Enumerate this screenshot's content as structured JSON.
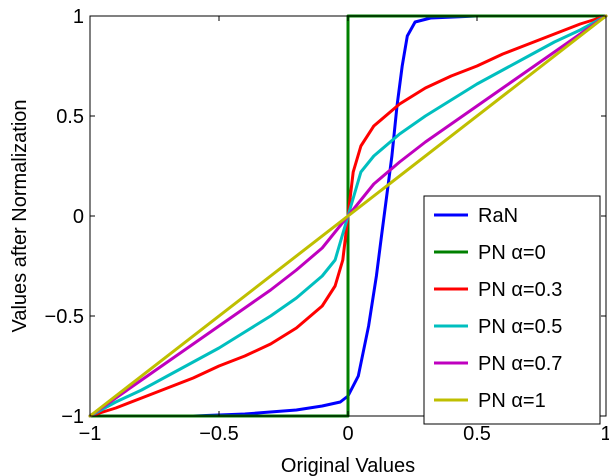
{
  "chart_data": {
    "type": "line",
    "title": "",
    "xlabel": "Original Values",
    "ylabel": "Values after Normalization",
    "xlim": [
      -1,
      1
    ],
    "ylim": [
      -1,
      1
    ],
    "grid": false,
    "legend_placement": "bottom-right",
    "x_ticks": [
      {
        "value": -1,
        "label": "−1"
      },
      {
        "value": -0.5,
        "label": "−0.5"
      },
      {
        "value": 0,
        "label": "0"
      },
      {
        "value": 0.5,
        "label": "0.5"
      },
      {
        "value": 1,
        "label": "1"
      }
    ],
    "y_ticks": [
      {
        "value": -1,
        "label": "−1"
      },
      {
        "value": -0.5,
        "label": "−0.5"
      },
      {
        "value": 0,
        "label": "0"
      },
      {
        "value": 0.5,
        "label": "0.5"
      },
      {
        "value": 1,
        "label": "1"
      }
    ],
    "series": [
      {
        "name": "RaN",
        "color": "#0000ff",
        "x": [
          -1,
          -0.6,
          -0.4,
          -0.2,
          -0.1,
          -0.03,
          0,
          0.04,
          0.08,
          0.11,
          0.13,
          0.15,
          0.17,
          0.19,
          0.21,
          0.23,
          0.26,
          0.32,
          0.5
        ],
        "y": [
          -1,
          -1,
          -0.99,
          -0.97,
          -0.95,
          -0.93,
          -0.9,
          -0.8,
          -0.55,
          -0.3,
          -0.1,
          0.1,
          0.3,
          0.55,
          0.75,
          0.9,
          0.97,
          0.99,
          1
        ]
      },
      {
        "name": "PN α=0",
        "color": "#008000",
        "x": [
          -1,
          0,
          0,
          1
        ],
        "y": [
          -1,
          -1,
          1,
          1
        ]
      },
      {
        "name": "PN α=0.3",
        "color": "#ff0000",
        "x": [
          -1,
          -0.9,
          -0.8,
          -0.7,
          -0.6,
          -0.5,
          -0.4,
          -0.3,
          -0.2,
          -0.1,
          -0.05,
          -0.02,
          0,
          0.02,
          0.05,
          0.1,
          0.2,
          0.3,
          0.4,
          0.5,
          0.6,
          0.7,
          0.8,
          0.9,
          1
        ],
        "y": [
          -1,
          -0.96,
          -0.91,
          -0.86,
          -0.81,
          -0.75,
          -0.7,
          -0.64,
          -0.56,
          -0.45,
          -0.35,
          -0.22,
          0,
          0.22,
          0.35,
          0.45,
          0.56,
          0.64,
          0.7,
          0.75,
          0.81,
          0.86,
          0.91,
          0.96,
          1
        ]
      },
      {
        "name": "PN α=0.5",
        "color": "#00bfbf",
        "x": [
          -1,
          -0.9,
          -0.8,
          -0.7,
          -0.6,
          -0.5,
          -0.4,
          -0.3,
          -0.2,
          -0.1,
          -0.05,
          0,
          0.05,
          0.1,
          0.2,
          0.3,
          0.4,
          0.5,
          0.6,
          0.7,
          0.8,
          0.9,
          1
        ],
        "y": [
          -1,
          -0.93,
          -0.87,
          -0.8,
          -0.73,
          -0.66,
          -0.58,
          -0.5,
          -0.41,
          -0.3,
          -0.22,
          0,
          0.22,
          0.3,
          0.41,
          0.5,
          0.58,
          0.66,
          0.73,
          0.8,
          0.87,
          0.93,
          1
        ]
      },
      {
        "name": "PN α=0.7",
        "color": "#bf00bf",
        "x": [
          -1,
          -0.9,
          -0.8,
          -0.7,
          -0.6,
          -0.5,
          -0.4,
          -0.3,
          -0.2,
          -0.1,
          0,
          0.1,
          0.2,
          0.3,
          0.4,
          0.5,
          0.6,
          0.7,
          0.8,
          0.9,
          1
        ],
        "y": [
          -1,
          -0.91,
          -0.82,
          -0.73,
          -0.64,
          -0.55,
          -0.46,
          -0.37,
          -0.27,
          -0.16,
          0,
          0.16,
          0.27,
          0.37,
          0.46,
          0.55,
          0.64,
          0.73,
          0.82,
          0.91,
          1
        ]
      },
      {
        "name": "PN α=1",
        "color": "#bfbf00",
        "x": [
          -1,
          1
        ],
        "y": [
          -1,
          1
        ]
      }
    ]
  }
}
